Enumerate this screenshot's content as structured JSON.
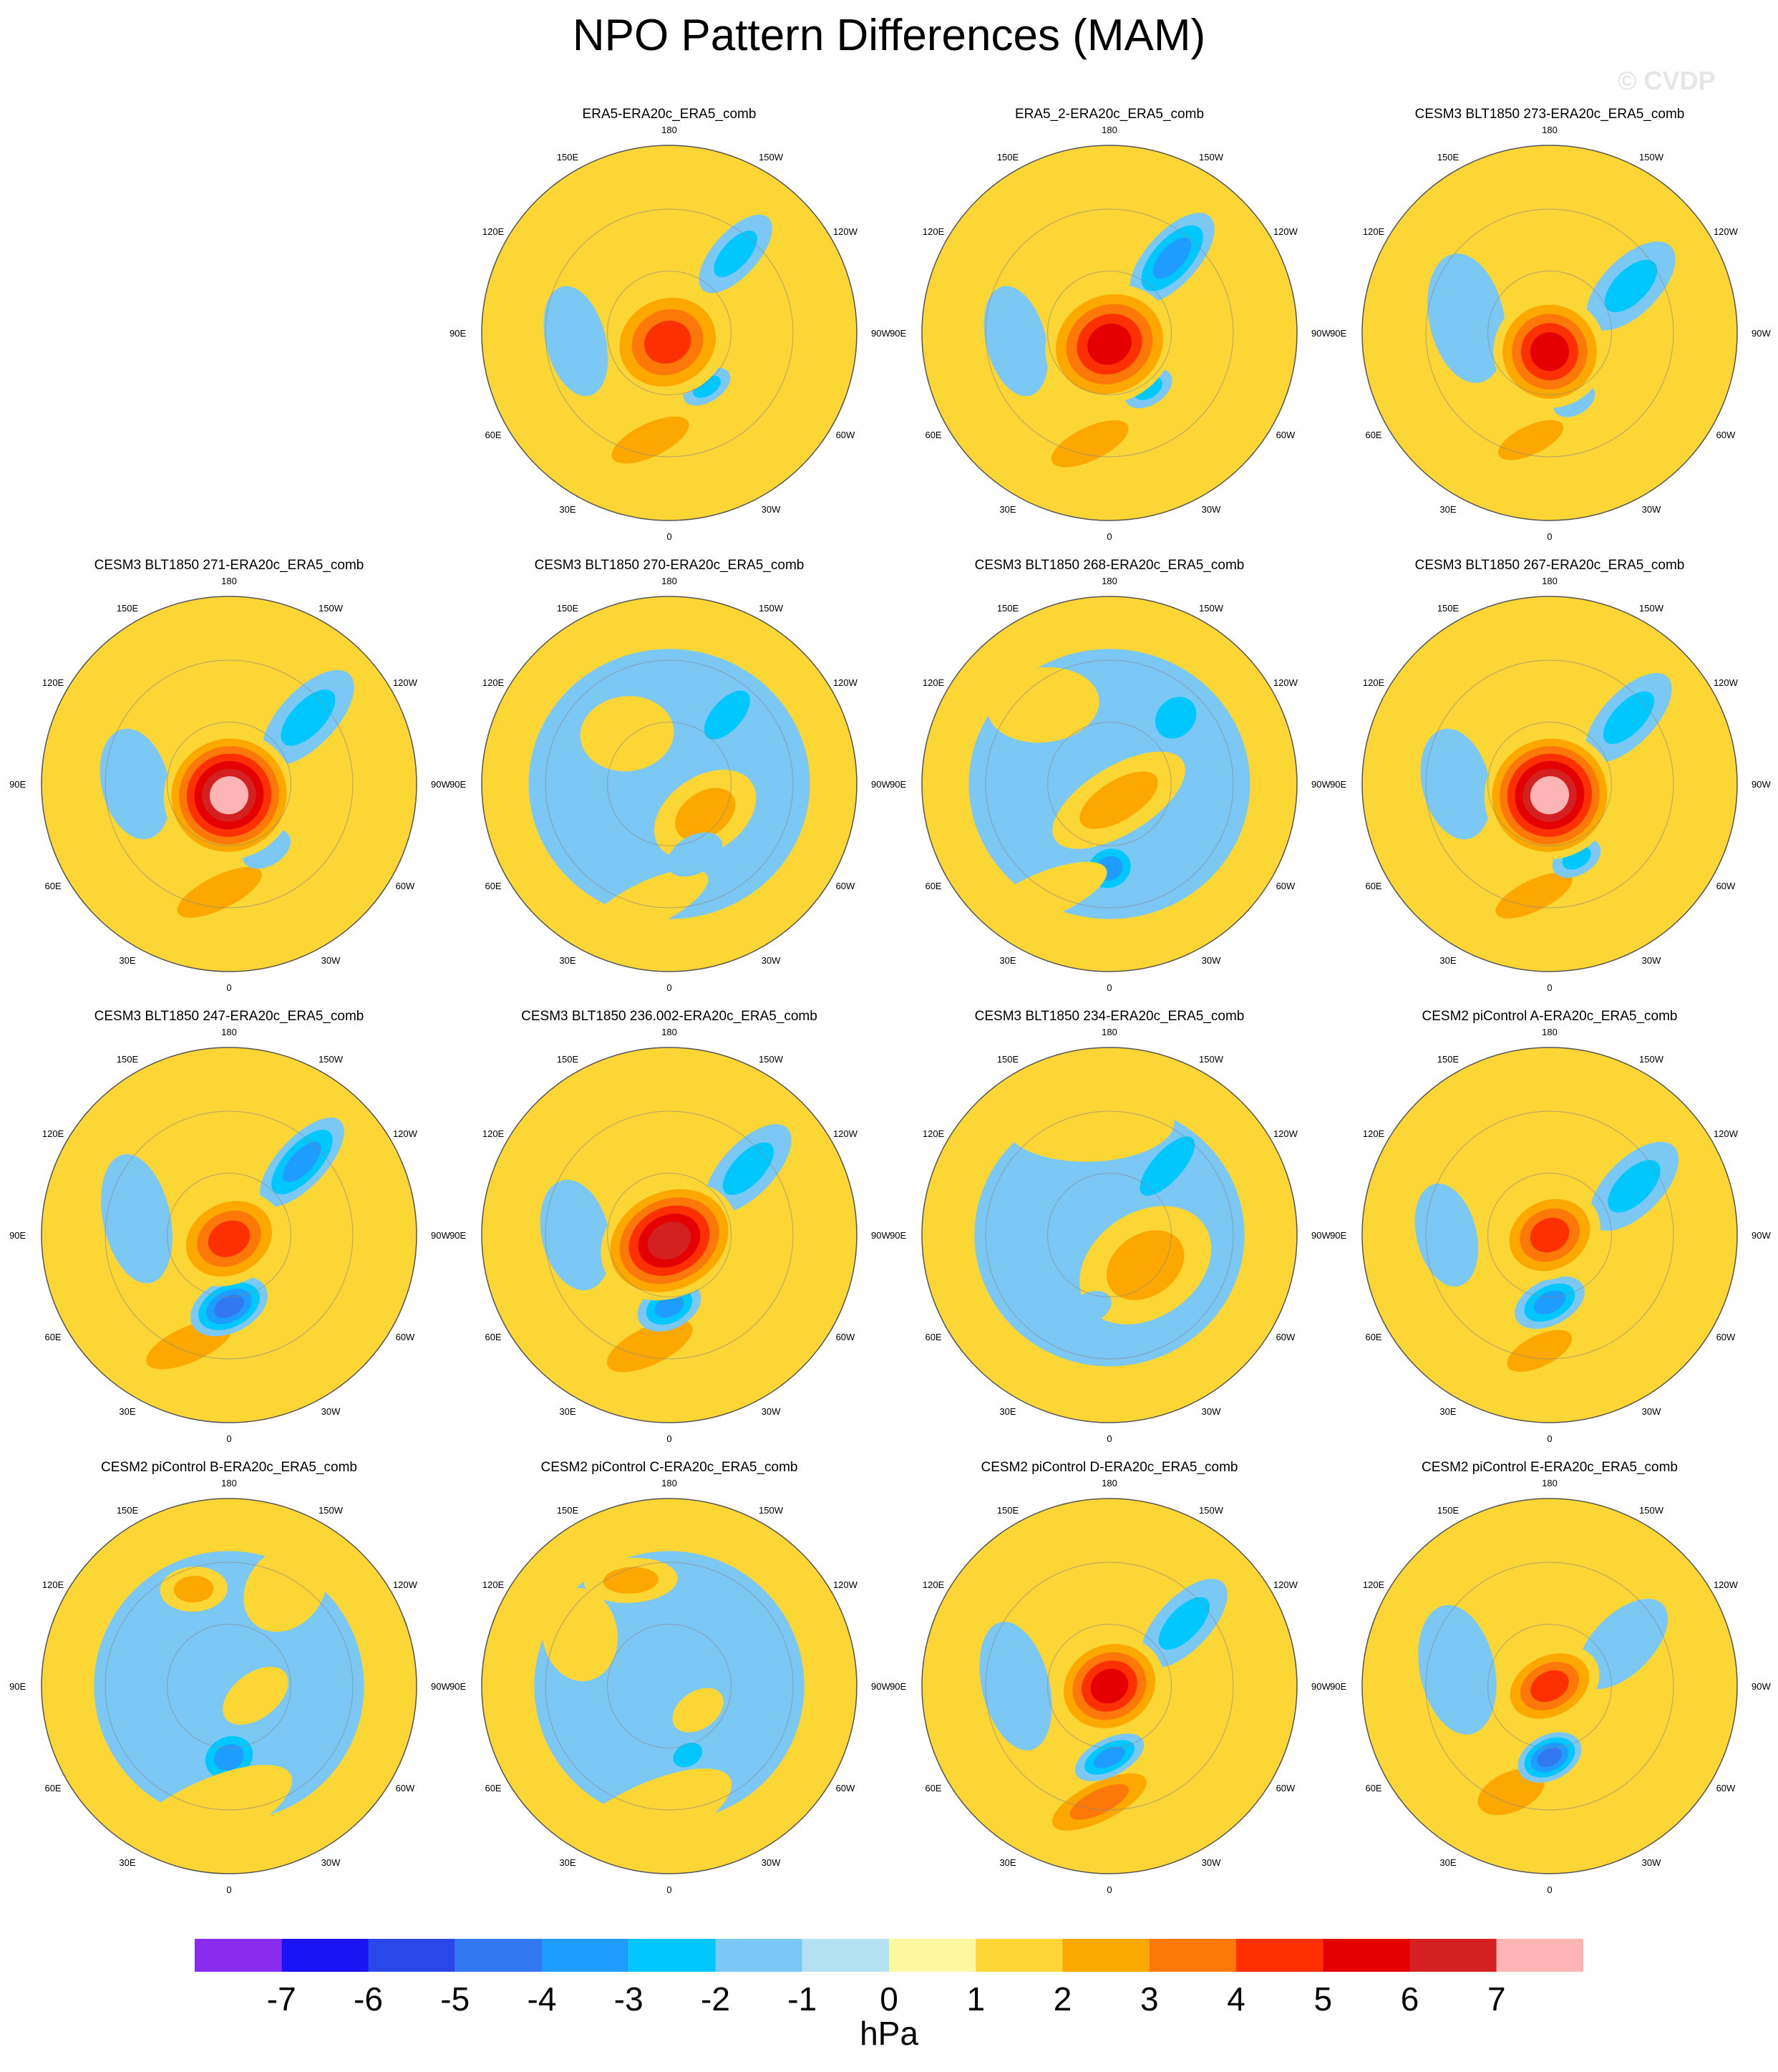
{
  "title": "NPO Pattern Differences (MAM)",
  "watermark": "© CVDP",
  "lon_labels": [
    "180",
    "150E",
    "120E",
    "90E",
    "60E",
    "30E",
    "0",
    "30W",
    "60W",
    "90W",
    "120W",
    "150W"
  ],
  "panels": [
    {
      "title": "ERA5-ERA20c_ERA5_comb",
      "pos": [
        1,
        0
      ],
      "blobs": [
        {
          "lon": 170,
          "r": 0.58,
          "rx": 0.38,
          "ry": 0.15,
          "levels": [
            1,
            2
          ]
        },
        {
          "lon": 215,
          "r": 0.35,
          "rx": 0.14,
          "ry": 0.08,
          "levels": [
            -1,
            -2
          ]
        },
        {
          "lon": 320,
          "r": 0.55,
          "rx": 0.26,
          "ry": 0.12,
          "levels": [
            -1,
            -2
          ]
        },
        {
          "lon": 95,
          "r": 0.5,
          "rx": 0.16,
          "ry": 0.3,
          "levels": [
            -1
          ]
        },
        {
          "lon": 170,
          "r": 0.05,
          "rx": 0.33,
          "ry": 0.29,
          "levels": [
            1,
            2,
            3,
            4
          ]
        }
      ]
    },
    {
      "title": "ERA5_2-ERA20c_ERA5_comb",
      "pos": [
        2,
        0
      ],
      "blobs": [
        {
          "lon": 170,
          "r": 0.6,
          "rx": 0.38,
          "ry": 0.15,
          "levels": [
            1,
            2
          ]
        },
        {
          "lon": 215,
          "r": 0.36,
          "rx": 0.14,
          "ry": 0.09,
          "levels": [
            -1,
            -2
          ]
        },
        {
          "lon": 320,
          "r": 0.52,
          "rx": 0.3,
          "ry": 0.14,
          "levels": [
            -1,
            -2,
            -3
          ]
        },
        {
          "lon": 95,
          "r": 0.5,
          "rx": 0.16,
          "ry": 0.3,
          "levels": [
            -1
          ]
        },
        {
          "lon": 180,
          "r": 0.06,
          "rx": 0.35,
          "ry": 0.31,
          "levels": [
            1,
            2,
            3,
            4,
            5
          ]
        }
      ]
    },
    {
      "title": "CESM3 BLT1850 273-ERA20c_ERA5_comb",
      "pos": [
        3,
        0
      ],
      "blobs": [
        {
          "lon": 170,
          "r": 0.58,
          "rx": 0.32,
          "ry": 0.13,
          "levels": [
            1,
            2
          ]
        },
        {
          "lon": 300,
          "r": 0.5,
          "rx": 0.3,
          "ry": 0.15,
          "levels": [
            -1,
            -2
          ]
        },
        {
          "lon": 80,
          "r": 0.45,
          "rx": 0.2,
          "ry": 0.35,
          "levels": [
            -1
          ]
        },
        {
          "lon": 200,
          "r": 0.38,
          "rx": 0.12,
          "ry": 0.08,
          "levels": [
            -1
          ]
        },
        {
          "lon": 180,
          "r": 0.1,
          "rx": 0.3,
          "ry": 0.3,
          "levels": [
            1,
            2,
            3,
            4,
            5
          ]
        }
      ]
    },
    {
      "title": "CESM3 BLT1850 271-ERA20c_ERA5_comb",
      "pos": [
        0,
        1
      ],
      "blobs": [
        {
          "lon": 175,
          "r": 0.58,
          "rx": 0.42,
          "ry": 0.15,
          "levels": [
            1,
            2
          ]
        },
        {
          "lon": 210,
          "r": 0.4,
          "rx": 0.14,
          "ry": 0.09,
          "levels": [
            -1
          ]
        },
        {
          "lon": 310,
          "r": 0.55,
          "rx": 0.32,
          "ry": 0.15,
          "levels": [
            -1,
            -2
          ]
        },
        {
          "lon": 90,
          "r": 0.5,
          "rx": 0.18,
          "ry": 0.3,
          "levels": [
            -1
          ]
        },
        {
          "lon": 180,
          "r": 0.06,
          "rx": 0.35,
          "ry": 0.34,
          "levels": [
            1,
            2,
            3,
            4,
            5,
            6,
            7
          ]
        }
      ]
    },
    {
      "title": "CESM3 BLT1850 270-ERA20c_ERA5_comb",
      "pos": [
        1,
        1
      ],
      "blobs": [
        {
          "lon": 0,
          "r": 0,
          "rx": 0.75,
          "ry": 0.72,
          "levels": [
            -1
          ]
        },
        {
          "lon": 230,
          "r": 0.25,
          "rx": 0.3,
          "ry": 0.2,
          "levels": [
            1,
            2
          ]
        },
        {
          "lon": 40,
          "r": 0.35,
          "rx": 0.25,
          "ry": 0.2,
          "levels": [
            1
          ]
        },
        {
          "lon": 170,
          "r": 0.65,
          "rx": 0.35,
          "ry": 0.12,
          "levels": [
            1
          ]
        },
        {
          "lon": 320,
          "r": 0.48,
          "rx": 0.16,
          "ry": 0.08,
          "levels": [
            -2
          ]
        },
        {
          "lon": 200,
          "r": 0.4,
          "rx": 0.16,
          "ry": 0.1,
          "levels": [
            -1
          ]
        }
      ]
    },
    {
      "title": "CESM3 BLT1850 268-ERA20c_ERA5_comb",
      "pos": [
        2,
        1
      ],
      "blobs": [
        {
          "lon": 0,
          "r": 0,
          "rx": 0.75,
          "ry": 0.72,
          "levels": [
            -1
          ]
        },
        {
          "lon": 180,
          "r": 0.45,
          "rx": 0.16,
          "ry": 0.14,
          "levels": [
            -1,
            -2,
            -3
          ]
        },
        {
          "lon": 210,
          "r": 0.1,
          "rx": 0.4,
          "ry": 0.18,
          "levels": [
            1,
            2
          ]
        },
        {
          "lon": 40,
          "r": 0.55,
          "rx": 0.3,
          "ry": 0.2,
          "levels": [
            1
          ]
        },
        {
          "lon": 150,
          "r": 0.68,
          "rx": 0.35,
          "ry": 0.12,
          "levels": [
            1
          ]
        },
        {
          "lon": 315,
          "r": 0.5,
          "rx": 0.12,
          "ry": 0.1,
          "levels": [
            -2
          ]
        }
      ]
    },
    {
      "title": "CESM3 BLT1850 267-ERA20c_ERA5_comb",
      "pos": [
        3,
        1
      ],
      "blobs": [
        {
          "lon": 172,
          "r": 0.6,
          "rx": 0.38,
          "ry": 0.14,
          "levels": [
            1,
            2
          ]
        },
        {
          "lon": 200,
          "r": 0.42,
          "rx": 0.14,
          "ry": 0.09,
          "levels": [
            -1,
            -2
          ]
        },
        {
          "lon": 310,
          "r": 0.55,
          "rx": 0.3,
          "ry": 0.14,
          "levels": [
            -1,
            -2
          ]
        },
        {
          "lon": 90,
          "r": 0.5,
          "rx": 0.18,
          "ry": 0.3,
          "levels": [
            -1
          ]
        },
        {
          "lon": 180,
          "r": 0.06,
          "rx": 0.35,
          "ry": 0.34,
          "levels": [
            1,
            2,
            3,
            4,
            5,
            6,
            7
          ]
        }
      ]
    },
    {
      "title": "CESM3 BLT1850 247-ERA20c_ERA5_comb",
      "pos": [
        0,
        2
      ],
      "blobs": [
        {
          "lon": 160,
          "r": 0.62,
          "rx": 0.42,
          "ry": 0.16,
          "levels": [
            1,
            2
          ]
        },
        {
          "lon": 180,
          "r": 0.38,
          "rx": 0.22,
          "ry": 0.14,
          "levels": [
            -1,
            -2,
            -3,
            -4
          ]
        },
        {
          "lon": 315,
          "r": 0.55,
          "rx": 0.3,
          "ry": 0.13,
          "levels": [
            -1,
            -2,
            -3
          ]
        },
        {
          "lon": 80,
          "r": 0.5,
          "rx": 0.18,
          "ry": 0.35,
          "levels": [
            -1
          ]
        },
        {
          "lon": 180,
          "r": 0.02,
          "rx": 0.3,
          "ry": 0.24,
          "levels": [
            1,
            2,
            3,
            4
          ]
        }
      ]
    },
    {
      "title": "CESM3 BLT1850 236.002-ERA20c_ERA5_comb",
      "pos": [
        1,
        2
      ],
      "blobs": [
        {
          "lon": 170,
          "r": 0.6,
          "rx": 0.42,
          "ry": 0.17,
          "levels": [
            1,
            2
          ]
        },
        {
          "lon": 180,
          "r": 0.38,
          "rx": 0.18,
          "ry": 0.12,
          "levels": [
            -1,
            -2,
            -3
          ]
        },
        {
          "lon": 310,
          "r": 0.55,
          "rx": 0.3,
          "ry": 0.14,
          "levels": [
            -1,
            -2
          ]
        },
        {
          "lon": 90,
          "r": 0.5,
          "rx": 0.18,
          "ry": 0.3,
          "levels": [
            -1
          ]
        },
        {
          "lon": 180,
          "r": 0.03,
          "rx": 0.38,
          "ry": 0.3,
          "levels": [
            1,
            2,
            3,
            4,
            5,
            6
          ]
        }
      ]
    },
    {
      "title": "CESM3 BLT1850 234-ERA20c_ERA5_comb",
      "pos": [
        2,
        2
      ],
      "blobs": [
        {
          "lon": 0,
          "r": 0,
          "rx": 0.72,
          "ry": 0.7,
          "levels": [
            -1
          ]
        },
        {
          "lon": 230,
          "r": 0.25,
          "rx": 0.38,
          "ry": 0.28,
          "levels": [
            1,
            2
          ]
        },
        {
          "lon": 10,
          "r": 0.6,
          "rx": 0.45,
          "ry": 0.2,
          "levels": [
            1
          ]
        },
        {
          "lon": 165,
          "r": 0.4,
          "rx": 0.12,
          "ry": 0.08,
          "levels": [
            -1
          ]
        },
        {
          "lon": 320,
          "r": 0.48,
          "rx": 0.2,
          "ry": 0.08,
          "levels": [
            -2
          ]
        }
      ]
    },
    {
      "title": "CESM2 piControl A-ERA20c_ERA5_comb",
      "pos": [
        3,
        2
      ],
      "blobs": [
        {
          "lon": 175,
          "r": 0.62,
          "rx": 0.32,
          "ry": 0.14,
          "levels": [
            1,
            2
          ]
        },
        {
          "lon": 180,
          "r": 0.36,
          "rx": 0.2,
          "ry": 0.12,
          "levels": [
            -1,
            -2,
            -3
          ]
        },
        {
          "lon": 300,
          "r": 0.52,
          "rx": 0.3,
          "ry": 0.15,
          "levels": [
            -1,
            -2
          ]
        },
        {
          "lon": 90,
          "r": 0.55,
          "rx": 0.16,
          "ry": 0.28,
          "levels": [
            -1
          ]
        },
        {
          "lon": 180,
          "r": 0.0,
          "rx": 0.28,
          "ry": 0.23,
          "levels": [
            1,
            2,
            3,
            4
          ]
        }
      ]
    },
    {
      "title": "CESM2 piControl B-ERA20c_ERA5_comb",
      "pos": [
        0,
        3
      ],
      "blobs": [
        {
          "lon": 0,
          "r": 0,
          "rx": 0.72,
          "ry": 0.72,
          "levels": [
            -1
          ]
        },
        {
          "lon": 180,
          "r": 0.38,
          "rx": 0.18,
          "ry": 0.15,
          "levels": [
            -1,
            -2,
            -3
          ]
        },
        {
          "lon": 170,
          "r": 0.7,
          "rx": 0.5,
          "ry": 0.18,
          "levels": [
            1
          ]
        },
        {
          "lon": 250,
          "r": 0.15,
          "rx": 0.2,
          "ry": 0.12,
          "levels": [
            1
          ]
        },
        {
          "lon": 20,
          "r": 0.55,
          "rx": 0.18,
          "ry": 0.12,
          "levels": [
            1,
            2
          ]
        },
        {
          "lon": 330,
          "r": 0.6,
          "rx": 0.25,
          "ry": 0.2,
          "levels": [
            1
          ]
        }
      ]
    },
    {
      "title": "CESM2 piControl C-ERA20c_ERA5_comb",
      "pos": [
        1,
        3
      ],
      "blobs": [
        {
          "lon": 0,
          "r": 0,
          "rx": 0.72,
          "ry": 0.72,
          "levels": [
            -1
          ]
        },
        {
          "lon": 195,
          "r": 0.38,
          "rx": 0.14,
          "ry": 0.1,
          "levels": [
            -1,
            -2
          ]
        },
        {
          "lon": 170,
          "r": 0.72,
          "rx": 0.5,
          "ry": 0.18,
          "levels": [
            1
          ]
        },
        {
          "lon": 230,
          "r": 0.2,
          "rx": 0.15,
          "ry": 0.1,
          "levels": [
            1
          ]
        },
        {
          "lon": 20,
          "r": 0.6,
          "rx": 0.25,
          "ry": 0.12,
          "levels": [
            1,
            2
          ]
        },
        {
          "lon": 60,
          "r": 0.55,
          "rx": 0.2,
          "ry": 0.25,
          "levels": [
            1
          ]
        }
      ]
    },
    {
      "title": "CESM2 piControl D-ERA20c_ERA5_comb",
      "pos": [
        2,
        3
      ],
      "blobs": [
        {
          "lon": 175,
          "r": 0.62,
          "rx": 0.38,
          "ry": 0.14,
          "levels": [
            1,
            2,
            3
          ]
        },
        {
          "lon": 180,
          "r": 0.38,
          "rx": 0.2,
          "ry": 0.1,
          "levels": [
            -1,
            -2,
            -3
          ]
        },
        {
          "lon": 310,
          "r": 0.52,
          "rx": 0.3,
          "ry": 0.14,
          "levels": [
            -1,
            -2
          ]
        },
        {
          "lon": 90,
          "r": 0.5,
          "rx": 0.18,
          "ry": 0.35,
          "levels": [
            -1
          ]
        },
        {
          "lon": 180,
          "r": 0.0,
          "rx": 0.3,
          "ry": 0.26,
          "levels": [
            1,
            2,
            3,
            4,
            5
          ]
        }
      ]
    },
    {
      "title": "CESM2 piControl E-ERA20c_ERA5_comb",
      "pos": [
        3,
        3
      ],
      "blobs": [
        {
          "lon": 160,
          "r": 0.6,
          "rx": 0.32,
          "ry": 0.18,
          "levels": [
            1,
            2
          ]
        },
        {
          "lon": 180,
          "r": 0.38,
          "rx": 0.18,
          "ry": 0.12,
          "levels": [
            -1,
            -2,
            -3,
            -4
          ]
        },
        {
          "lon": 300,
          "r": 0.45,
          "rx": 0.3,
          "ry": 0.16,
          "levels": [
            -1
          ]
        },
        {
          "lon": 80,
          "r": 0.5,
          "rx": 0.2,
          "ry": 0.35,
          "levels": [
            -1
          ]
        },
        {
          "lon": 180,
          "r": 0.0,
          "rx": 0.28,
          "ry": 0.2,
          "levels": [
            1,
            2,
            3,
            4
          ]
        }
      ]
    }
  ],
  "colorbar": {
    "colors": [
      "#8a2bf0",
      "#1a14f5",
      "#2a48e8",
      "#3278f0",
      "#1e9cff",
      "#00c8ff",
      "#7cc8f4",
      "#b4e0f4",
      "#fcf8a0",
      "#fcd634",
      "#fca800",
      "#fc7808",
      "#fc3000",
      "#e40000",
      "#d42020",
      "#fcb4b4"
    ],
    "labels": [
      "-7",
      "-6",
      "-5",
      "-4",
      "-3",
      "-2",
      "-1",
      "0",
      "1",
      "2",
      "3",
      "4",
      "5",
      "6",
      "7"
    ],
    "units": "hPa"
  }
}
